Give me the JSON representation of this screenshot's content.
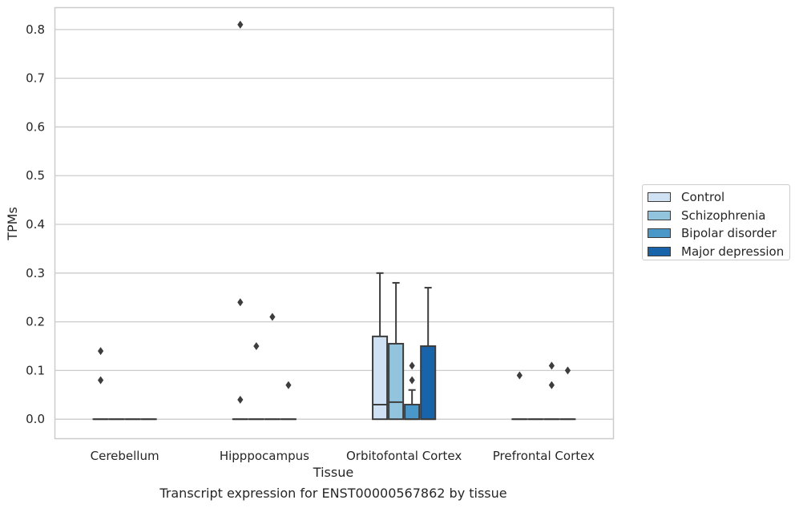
{
  "chart_data": {
    "type": "box",
    "xlabel": "Tissue",
    "ylabel": "TPMs",
    "ylim": [
      -0.04,
      0.845
    ],
    "yticks": [
      0.0,
      0.1,
      0.2,
      0.3,
      0.4,
      0.5,
      0.6,
      0.7,
      0.8
    ],
    "yticklabels": [
      "0.0",
      "0.1",
      "0.2",
      "0.3",
      "0.4",
      "0.5",
      "0.6",
      "0.7",
      "0.8"
    ],
    "grid": true,
    "categories": [
      "Cerebellum",
      "Hipppocampus",
      "Orbitofontal Cortex",
      "Prefrontal Cortex"
    ],
    "legend_position": "right",
    "series": [
      {
        "name": "Control",
        "color": "#cfe1f2",
        "boxes": [
          {
            "q1": 0,
            "median": 0,
            "q3": 0,
            "whisker_low": 0,
            "whisker_high": 0,
            "outliers": [
              0.14,
              0.08
            ]
          },
          {
            "q1": 0,
            "median": 0,
            "q3": 0,
            "whisker_low": 0,
            "whisker_high": 0,
            "outliers": [
              0.81,
              0.24,
              0.04
            ]
          },
          {
            "q1": 0,
            "median": 0.03,
            "q3": 0.17,
            "whisker_low": 0,
            "whisker_high": 0.3,
            "outliers": []
          },
          {
            "q1": 0,
            "median": 0,
            "q3": 0,
            "whisker_low": 0,
            "whisker_high": 0,
            "outliers": [
              0.09
            ]
          }
        ]
      },
      {
        "name": "Schizophrenia",
        "color": "#93c4de",
        "boxes": [
          {
            "q1": 0,
            "median": 0,
            "q3": 0,
            "whisker_low": 0,
            "whisker_high": 0,
            "outliers": []
          },
          {
            "q1": 0,
            "median": 0,
            "q3": 0,
            "whisker_low": 0,
            "whisker_high": 0,
            "outliers": [
              0.15
            ]
          },
          {
            "q1": 0,
            "median": 0.035,
            "q3": 0.155,
            "whisker_low": 0,
            "whisker_high": 0.28,
            "outliers": []
          },
          {
            "q1": 0,
            "median": 0,
            "q3": 0,
            "whisker_low": 0,
            "whisker_high": 0,
            "outliers": []
          }
        ]
      },
      {
        "name": "Bipolar disorder",
        "color": "#4a98c9",
        "boxes": [
          {
            "q1": 0,
            "median": 0,
            "q3": 0,
            "whisker_low": 0,
            "whisker_high": 0,
            "outliers": []
          },
          {
            "q1": 0,
            "median": 0,
            "q3": 0,
            "whisker_low": 0,
            "whisker_high": 0,
            "outliers": [
              0.21
            ]
          },
          {
            "q1": 0,
            "median": 0,
            "q3": 0.03,
            "whisker_low": 0,
            "whisker_high": 0.06,
            "outliers": [
              0.11,
              0.08
            ]
          },
          {
            "q1": 0,
            "median": 0,
            "q3": 0,
            "whisker_low": 0,
            "whisker_high": 0,
            "outliers": [
              0.11,
              0.07
            ]
          }
        ]
      },
      {
        "name": "Major depression",
        "color": "#1764ab",
        "boxes": [
          {
            "q1": 0,
            "median": 0,
            "q3": 0,
            "whisker_low": 0,
            "whisker_high": 0,
            "outliers": []
          },
          {
            "q1": 0,
            "median": 0,
            "q3": 0,
            "whisker_low": 0,
            "whisker_high": 0,
            "outliers": [
              0.07
            ]
          },
          {
            "q1": 0,
            "median": 0,
            "q3": 0.15,
            "whisker_low": 0,
            "whisker_high": 0.27,
            "outliers": []
          },
          {
            "q1": 0,
            "median": 0,
            "q3": 0,
            "whisker_low": 0,
            "whisker_high": 0,
            "outliers": [
              0.1
            ]
          }
        ]
      }
    ]
  },
  "caption": "Transcript expression for ENST00000567862 by tissue"
}
